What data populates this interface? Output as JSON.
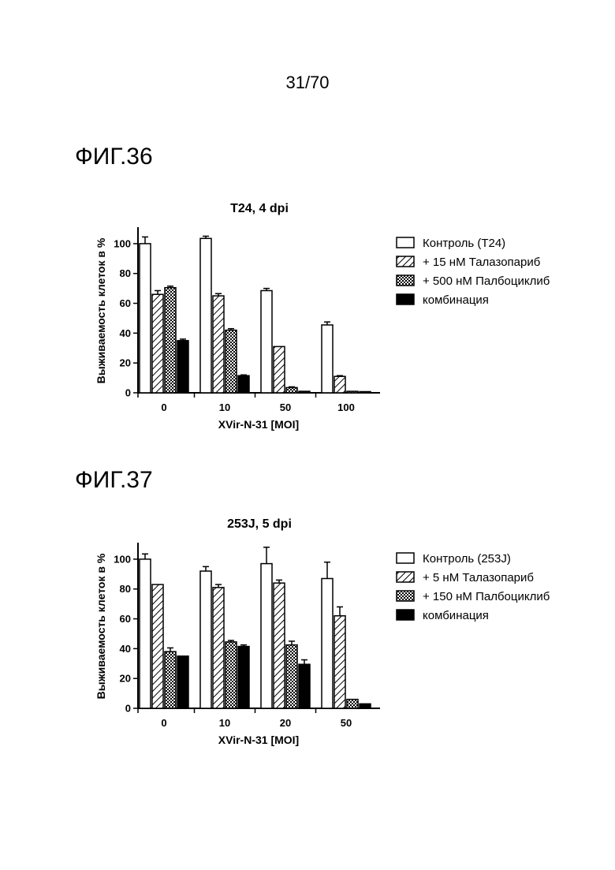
{
  "page_number": "31/70",
  "figures": [
    {
      "label": "ФИГ.36"
    },
    {
      "label": "ФИГ.37"
    }
  ],
  "colors": {
    "ink": "#000000",
    "paper": "#ffffff"
  },
  "chart_data": [
    {
      "type": "bar",
      "title": "T24, 4 dpi",
      "xlabel": "XVir-N-31 [MOI]",
      "ylabel": "Выживаемость клеток в %",
      "categories": [
        "0",
        "10",
        "50",
        "100"
      ],
      "ylim": [
        0,
        110
      ],
      "yticks": [
        0,
        20,
        40,
        60,
        80,
        100
      ],
      "legend_position": "right",
      "series": [
        {
          "name": "Контроль (T24)",
          "pattern": "open",
          "values": [
            100,
            103.5,
            68.5,
            45.5
          ],
          "errors": [
            4.5,
            1.5,
            1.5,
            2
          ]
        },
        {
          "name": "+ 15 нМ Талазопариб",
          "pattern": "hatch",
          "values": [
            66,
            65,
            31,
            11
          ],
          "errors": [
            2.5,
            1.5,
            0,
            0.5
          ]
        },
        {
          "name": "+ 500 нМ Палбоциклиб",
          "pattern": "checker",
          "values": [
            70.5,
            42,
            3.5,
            1
          ],
          "errors": [
            1,
            1,
            0.5,
            0
          ]
        },
        {
          "name": "комбинация",
          "pattern": "solid",
          "values": [
            35,
            11.5,
            1,
            0.5
          ],
          "errors": [
            1,
            0.5,
            0,
            0
          ]
        }
      ]
    },
    {
      "type": "bar",
      "title": "253J, 5 dpi",
      "xlabel": "XVir-N-31 [MOI]",
      "ylabel": "Выживаемость клеток в %",
      "categories": [
        "0",
        "10",
        "20",
        "50"
      ],
      "ylim": [
        0,
        110
      ],
      "yticks": [
        0,
        20,
        40,
        60,
        80,
        100
      ],
      "legend_position": "right",
      "series": [
        {
          "name": "Контроль (253J)",
          "pattern": "open",
          "values": [
            100,
            92,
            97,
            87
          ],
          "errors": [
            3.5,
            3,
            11,
            11
          ]
        },
        {
          "name": "+ 5 нМ Талазопариб",
          "pattern": "hatch",
          "values": [
            83,
            81,
            84,
            62
          ],
          "errors": [
            0,
            2,
            2,
            6
          ]
        },
        {
          "name": "+ 150 нМ Палбоциклиб",
          "pattern": "checker",
          "values": [
            38,
            44.5,
            42.5,
            6
          ],
          "errors": [
            2.5,
            1,
            2.5,
            0
          ]
        },
        {
          "name": "комбинация",
          "pattern": "solid",
          "values": [
            35,
            41.5,
            29.5,
            3
          ],
          "errors": [
            0,
            1,
            3,
            0
          ]
        }
      ]
    }
  ]
}
